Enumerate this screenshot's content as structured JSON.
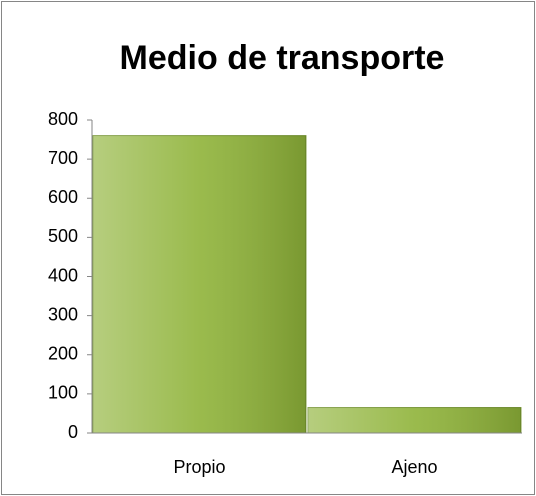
{
  "chart_data": {
    "type": "bar",
    "title": "Medio de transporte",
    "categories": [
      "Propio",
      "Ajeno"
    ],
    "values": [
      760,
      65
    ],
    "color": "#8fb339",
    "ylim": [
      0,
      800
    ],
    "yticks": [
      0,
      100,
      200,
      300,
      400,
      500,
      600,
      700,
      800
    ],
    "grid": false
  }
}
